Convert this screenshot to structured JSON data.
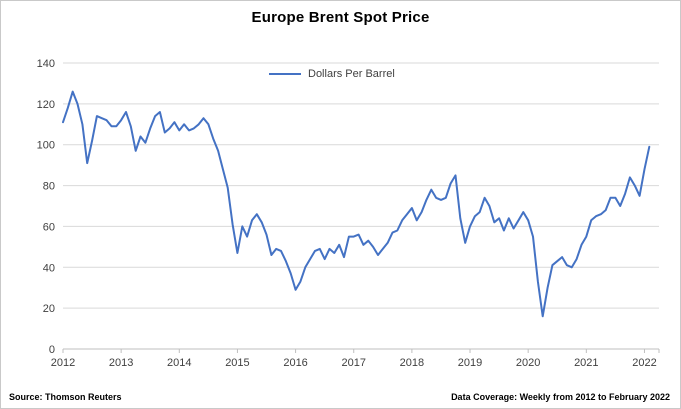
{
  "title": "Europe Brent Spot Price",
  "legend": {
    "label": "Dollars Per Barrel"
  },
  "footer": {
    "source": "Source: Thomson Reuters",
    "coverage": "Data Coverage: Weekly from 2012 to February 2022"
  },
  "colors": {
    "line": "#4472C4",
    "grid": "#d9d9d9",
    "axis": "#bfbfbf",
    "tick_text": "#404040"
  },
  "chart_data": {
    "type": "line",
    "title": "Europe Brent Spot Price",
    "series_name": "Dollars Per Barrel",
    "x_unit": "year",
    "x_start_year": 2012,
    "x_step_months": 1,
    "values": [
      111,
      118,
      126,
      120,
      110,
      91,
      102,
      114,
      113,
      112,
      109,
      109,
      112,
      116,
      109,
      97,
      104,
      101,
      108,
      114,
      116,
      106,
      108,
      111,
      107,
      110,
      107,
      108,
      110,
      113,
      110,
      103,
      97,
      88,
      79,
      61,
      47,
      60,
      55,
      63,
      66,
      62,
      56,
      46,
      49,
      48,
      43,
      37,
      29,
      33,
      40,
      44,
      48,
      49,
      44,
      49,
      47,
      51,
      45,
      55,
      55,
      56,
      51,
      53,
      50,
      46,
      49,
      52,
      57,
      58,
      63,
      66,
      69,
      63,
      67,
      73,
      78,
      74,
      73,
      74,
      81,
      85,
      64,
      52,
      60,
      65,
      67,
      74,
      70,
      62,
      64,
      58,
      64,
      59,
      63,
      67,
      63,
      55,
      33,
      16,
      30,
      41,
      43,
      45,
      41,
      40,
      44,
      51,
      55,
      63,
      65,
      66,
      68,
      74,
      74,
      70,
      76,
      84,
      80,
      75,
      88,
      99
    ],
    "xlim": [
      2012,
      2022.25
    ],
    "ylim": [
      0,
      140
    ],
    "y_ticks": [
      0,
      20,
      40,
      60,
      80,
      100,
      120,
      140
    ],
    "x_ticks": [
      2012,
      2013,
      2014,
      2015,
      2016,
      2017,
      2018,
      2019,
      2020,
      2021,
      2022
    ],
    "grid": "horizontal",
    "legend_position": "top-center",
    "xlabel": "",
    "ylabel": ""
  }
}
